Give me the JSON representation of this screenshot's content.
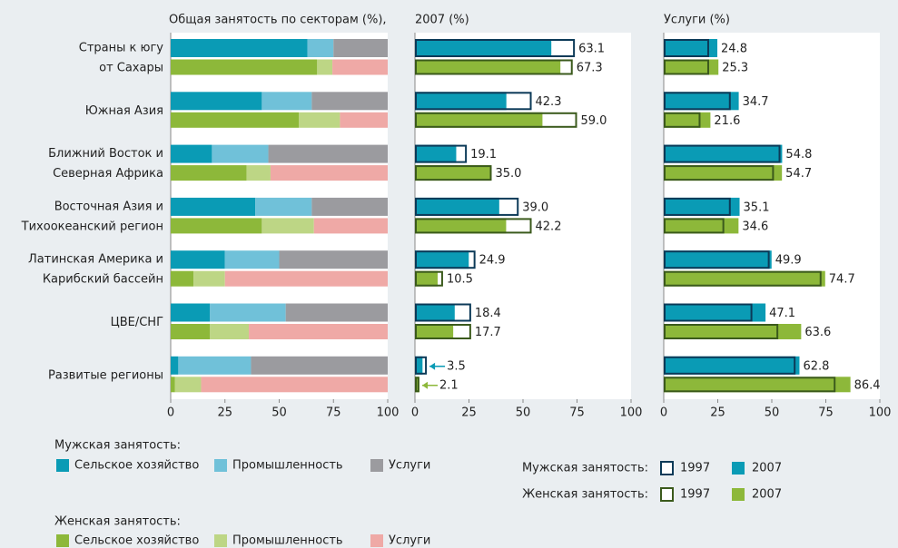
{
  "chart_data": {
    "type": "bar",
    "categories": [
      [
        "Страны к югу",
        "от Сахары"
      ],
      [
        "Южная Азия"
      ],
      [
        "Ближний Восток и",
        "Северная Африка"
      ],
      [
        "Восточная Азия и",
        "Тихоокеанский регион"
      ],
      [
        "Латинская Америка и",
        "Карибский бассейн"
      ],
      [
        "ЦВЕ/СНГ"
      ],
      [
        "Развитые регионы"
      ]
    ],
    "panels": [
      {
        "type": "stacked",
        "title": "Общая занятость по секторам (%),",
        "xlim": [
          0,
          100
        ],
        "xticks": [
          0,
          25,
          50,
          75,
          100
        ],
        "groups": [
          {
            "label": "Мужская занятость:",
            "series": [
              {
                "name": "Сельское хозяйство",
                "color": "#0a9bb5",
                "values": [
                  63,
                  42,
                  19,
                  39,
                  25,
                  18,
                  3.5
                ]
              },
              {
                "name": "Промышленность",
                "color": "#70c1d9",
                "values": [
                  12,
                  23,
                  26,
                  26,
                  25,
                  35,
                  33.5
                ]
              },
              {
                "name": "Услуги",
                "color": "#9b9b9f",
                "values": [
                  25,
                  35,
                  55,
                  35,
                  50,
                  47,
                  63
                ]
              }
            ]
          },
          {
            "label": "Женская занятость:",
            "series": [
              {
                "name": "Сельское хозяйство",
                "color": "#8db83a",
                "values": [
                  67.5,
                  59,
                  35,
                  42,
                  10.5,
                  18,
                  2
                ]
              },
              {
                "name": "Промышленность",
                "color": "#bdd685",
                "values": [
                  7,
                  19,
                  11,
                  24,
                  14.5,
                  18,
                  12
                ]
              },
              {
                "name": "Услуги",
                "color": "#efa9a6",
                "values": [
                  25.5,
                  22,
                  54,
                  34,
                  75,
                  64,
                  86
                ]
              }
            ]
          }
        ]
      },
      {
        "type": "compare",
        "title": "2007 (%)",
        "xlim": [
          0,
          100
        ],
        "xticks": [
          0,
          25,
          50,
          75,
          100
        ],
        "male_1997": [
          74,
          54,
          24,
          48,
          28,
          26,
          5.5
        ],
        "male_2007": [
          63.1,
          42.3,
          19.1,
          39.0,
          24.9,
          18.4,
          3.5
        ],
        "male_2007_labels": [
          "63.1",
          "42.3",
          "19.1",
          "39.0",
          "24.9",
          "18.4",
          "3.5"
        ],
        "female_1997": [
          73,
          75,
          35.5,
          54,
          13,
          26,
          2
        ],
        "female_2007": [
          67.3,
          59.0,
          35.0,
          42.2,
          10.5,
          17.7,
          2.1
        ],
        "female_2007_labels": [
          "67.3",
          "59.0",
          "35.0",
          "42.2",
          "10.5",
          "17.7",
          "2.1"
        ]
      },
      {
        "type": "compare",
        "title": "Услуги (%)",
        "xlim": [
          0,
          100
        ],
        "xticks": [
          0,
          25,
          50,
          75,
          100
        ],
        "male_1997": [
          21,
          31,
          54,
          31,
          49,
          41,
          61
        ],
        "male_2007": [
          24.8,
          34.7,
          54.8,
          35.1,
          49.9,
          47.1,
          62.8
        ],
        "male_2007_labels": [
          "24.8",
          "34.7",
          "54.8",
          "35.1",
          "49.9",
          "47.1",
          "62.8"
        ],
        "female_1997": [
          21,
          17,
          51,
          28,
          73,
          53,
          79.5
        ],
        "female_2007": [
          25.3,
          21.6,
          54.7,
          34.6,
          74.7,
          63.6,
          86.4
        ],
        "female_2007_labels": [
          "25.3",
          "21.6",
          "54.7",
          "34.6",
          "74.7",
          "63.6",
          "86.4"
        ]
      }
    ],
    "compare_legend": {
      "items": [
        "1997",
        "2007"
      ],
      "groups": [
        {
          "label": "Мужская занятость:",
          "outline": "#0c3a58",
          "fill": "#0a9bb5"
        },
        {
          "label": "Женская занятость:",
          "outline": "#3b5a1c",
          "fill": "#8db83a"
        }
      ]
    }
  }
}
